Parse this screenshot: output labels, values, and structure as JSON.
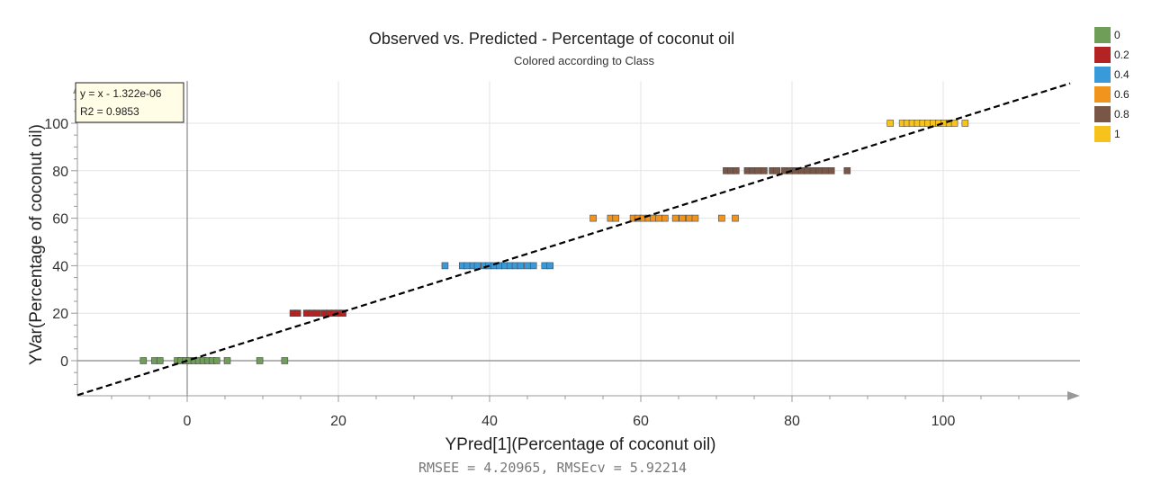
{
  "chart_data": {
    "type": "scatter",
    "title": "Observed vs. Predicted - Percentage of coconut oil",
    "subtitle": "Colored according to Class",
    "xlabel": "YPred[1](Percentage of coconut oil)",
    "ylabel": "YVar(Percentage of coconut oil)",
    "xlim": [
      -15,
      117
    ],
    "ylim": [
      -15,
      117
    ],
    "xticks": [
      0,
      20,
      40,
      60,
      80,
      100
    ],
    "yticks": [
      0,
      20,
      40,
      60,
      80,
      100
    ],
    "grid": true,
    "legend_position": "top-right",
    "fit_box": {
      "line1": "y = x - 1.322e-06",
      "line2": "R2 = 0.9853"
    },
    "footer": "RMSEE = 4.20965, RMSEcv = 5.92214",
    "regression_line": {
      "slope": 1,
      "intercept": -1.322e-06,
      "style": "dashed",
      "color": "#000000"
    },
    "series": [
      {
        "name": "0",
        "color": "#6e9e58",
        "y": 0,
        "x": [
          -5.8,
          -4.3,
          -3.6,
          -1.3,
          -0.8,
          -0.2,
          0.3,
          0.9,
          1.5,
          2.1,
          2.7,
          3.3,
          3.9,
          5.3,
          9.6,
          12.9
        ]
      },
      {
        "name": "0.2",
        "color": "#b32323",
        "y": 20,
        "x": [
          14.0,
          14.6,
          15.8,
          16.5,
          17.2,
          18.1,
          18.8,
          19.4,
          20.0,
          20.6
        ]
      },
      {
        "name": "0.4",
        "color": "#3a9ad9",
        "y": 40,
        "x": [
          34.1,
          36.4,
          37.0,
          37.8,
          38.4,
          39.3,
          39.9,
          40.6,
          41.3,
          42.0,
          42.7,
          43.4,
          44.1,
          45.0,
          45.8,
          47.3,
          48.0
        ]
      },
      {
        "name": "0.6",
        "color": "#f0941d",
        "y": 60,
        "x": [
          53.7,
          56.0,
          56.7,
          59.0,
          59.6,
          60.3,
          61.0,
          61.7,
          62.4,
          63.2,
          64.6,
          65.5,
          66.4,
          67.2,
          70.7,
          72.5
        ]
      },
      {
        "name": "0.8",
        "color": "#7a5646",
        "y": 80,
        "x": [
          71.3,
          71.9,
          72.6,
          74.1,
          74.8,
          75.5,
          76.3,
          77.4,
          78.0,
          79.0,
          79.7,
          80.5,
          81.3,
          82.0,
          82.8,
          83.6,
          84.4,
          85.2,
          87.3
        ]
      },
      {
        "name": "1",
        "color": "#f7c21b",
        "y": 100,
        "x": [
          93.0,
          94.6,
          95.2,
          95.9,
          96.6,
          97.3,
          98.0,
          98.7,
          99.4,
          100.1,
          100.8,
          101.5,
          102.9
        ]
      }
    ]
  }
}
